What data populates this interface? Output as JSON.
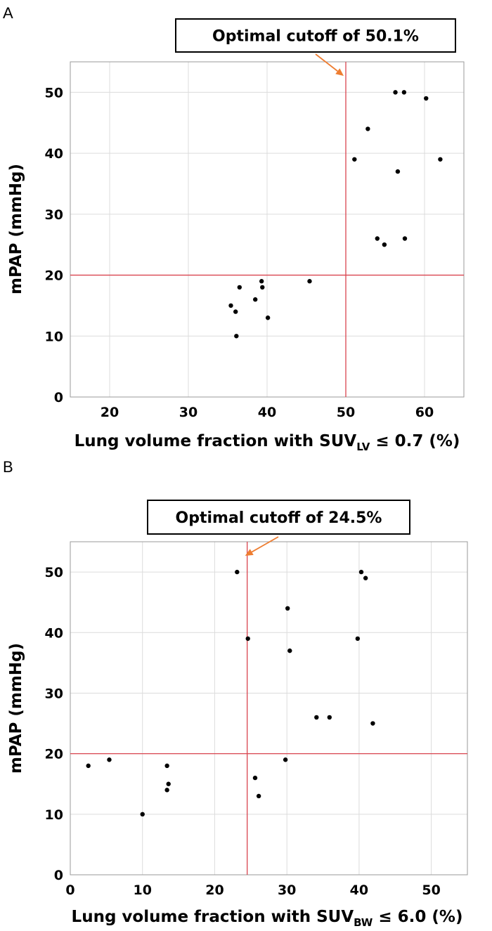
{
  "chart_data": [
    {
      "type": "scatter",
      "panel": "A",
      "title": "",
      "xlabel_main": "Lung volume fraction with SUV",
      "xlabel_sub": "LV",
      "xlabel_tail": " ≤ 0.7 (%)",
      "ylabel": "mPAP (mmHg)",
      "xlim": [
        15,
        65
      ],
      "ylim": [
        0,
        55
      ],
      "xticks": [
        20,
        30,
        40,
        50,
        60
      ],
      "yticks": [
        0,
        10,
        20,
        30,
        40,
        50
      ],
      "vline": 50,
      "hline": 20,
      "annotation": "Optimal cutoff of 50.1%",
      "points": [
        {
          "x": 35.4,
          "y": 15
        },
        {
          "x": 36.0,
          "y": 14
        },
        {
          "x": 36.1,
          "y": 10
        },
        {
          "x": 36.5,
          "y": 18
        },
        {
          "x": 38.5,
          "y": 16
        },
        {
          "x": 39.3,
          "y": 19
        },
        {
          "x": 39.4,
          "y": 18
        },
        {
          "x": 40.1,
          "y": 13
        },
        {
          "x": 45.4,
          "y": 19
        },
        {
          "x": 51.1,
          "y": 39
        },
        {
          "x": 52.8,
          "y": 44
        },
        {
          "x": 54.0,
          "y": 26
        },
        {
          "x": 54.9,
          "y": 25
        },
        {
          "x": 56.3,
          "y": 50
        },
        {
          "x": 56.6,
          "y": 37
        },
        {
          "x": 57.4,
          "y": 50
        },
        {
          "x": 57.5,
          "y": 26
        },
        {
          "x": 60.2,
          "y": 49
        },
        {
          "x": 62.0,
          "y": 39
        }
      ]
    },
    {
      "type": "scatter",
      "panel": "B",
      "title": "",
      "xlabel_main": "Lung volume fraction with SUV",
      "xlabel_sub": "BW",
      "xlabel_tail": " ≤ 6.0 (%)",
      "ylabel": "mPAP (mmHg)",
      "xlim": [
        0,
        55
      ],
      "ylim": [
        0,
        55
      ],
      "xticks": [
        0,
        10,
        20,
        30,
        40,
        50
      ],
      "yticks": [
        0,
        10,
        20,
        30,
        40,
        50
      ],
      "vline": 24.5,
      "hline": 20,
      "annotation": "Optimal cutoff of 24.5%",
      "points": [
        {
          "x": 2.5,
          "y": 18
        },
        {
          "x": 5.4,
          "y": 19
        },
        {
          "x": 10.0,
          "y": 10
        },
        {
          "x": 13.4,
          "y": 18
        },
        {
          "x": 13.4,
          "y": 14
        },
        {
          "x": 13.6,
          "y": 15
        },
        {
          "x": 23.1,
          "y": 50
        },
        {
          "x": 24.6,
          "y": 39
        },
        {
          "x": 25.6,
          "y": 16
        },
        {
          "x": 26.1,
          "y": 13
        },
        {
          "x": 29.8,
          "y": 19
        },
        {
          "x": 30.1,
          "y": 44
        },
        {
          "x": 30.4,
          "y": 37
        },
        {
          "x": 34.1,
          "y": 26
        },
        {
          "x": 35.9,
          "y": 26
        },
        {
          "x": 39.8,
          "y": 39
        },
        {
          "x": 40.3,
          "y": 50
        },
        {
          "x": 40.9,
          "y": 49
        },
        {
          "x": 41.9,
          "y": 25
        }
      ]
    }
  ]
}
